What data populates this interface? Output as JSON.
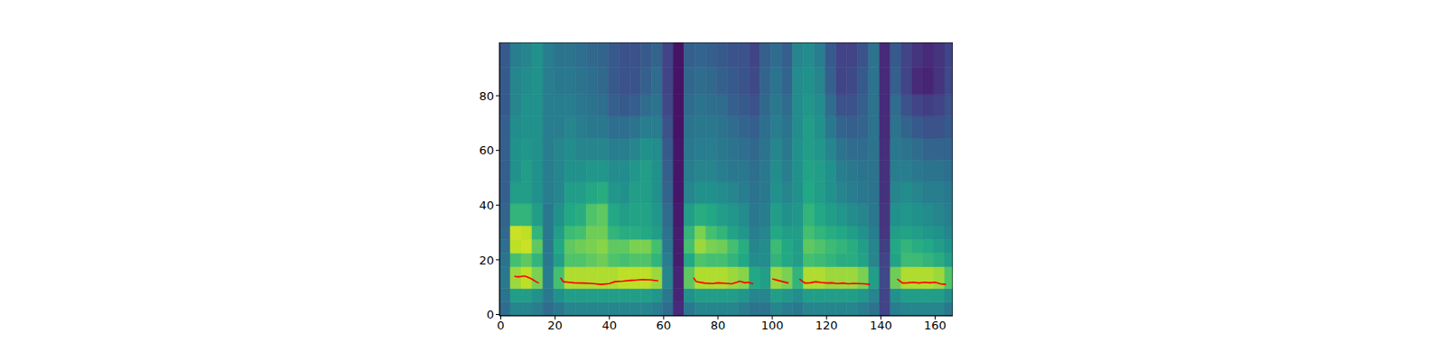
{
  "chart_data": {
    "type": "heatmap",
    "xlim": [
      -0.5,
      166.5
    ],
    "ylim": [
      -0.5,
      99.5
    ],
    "xticks": [
      0,
      20,
      40,
      60,
      80,
      100,
      120,
      140,
      160
    ],
    "yticks": [
      0,
      20,
      40,
      60,
      80
    ],
    "clim": [
      0,
      1
    ],
    "x_edges": [
      -0.5,
      3.5,
      7.5,
      11.5,
      15.5,
      19.5,
      23.5,
      27.5,
      31.5,
      35.5,
      39.5,
      43.5,
      47.5,
      51.5,
      55.5,
      59.5,
      63.5,
      67.5,
      71.5,
      75.5,
      79.5,
      83.5,
      87.5,
      91.5,
      95.5,
      99.5,
      103.5,
      107.5,
      111.5,
      115.5,
      119.5,
      123.5,
      127.5,
      131.5,
      135.5,
      139.5,
      143.5,
      147.5,
      151.5,
      155.5,
      159.5,
      163.5,
      166.5
    ],
    "y_edges": [
      -0.5,
      4.5,
      9.5,
      17.5,
      22.5,
      27.5,
      32.5,
      40.5,
      48.5,
      56.5,
      64.5,
      72.5,
      80.5,
      90.5,
      99.5
    ],
    "cells": [
      [
        0.35,
        0.38,
        0.4,
        0.38,
        0.36,
        0.34,
        0.32,
        0.3,
        0.3,
        0.3,
        0.3,
        0.28,
        0.28,
        0.28
      ],
      [
        0.45,
        0.55,
        0.85,
        0.7,
        0.9,
        0.92,
        0.65,
        0.55,
        0.5,
        0.5,
        0.48,
        0.45,
        0.45,
        0.42
      ],
      [
        0.45,
        0.55,
        0.9,
        0.75,
        0.92,
        0.9,
        0.65,
        0.55,
        0.55,
        0.52,
        0.5,
        0.5,
        0.48,
        0.45
      ],
      [
        0.42,
        0.5,
        0.8,
        0.65,
        0.75,
        0.65,
        0.55,
        0.5,
        0.5,
        0.5,
        0.5,
        0.5,
        0.5,
        0.5
      ],
      [
        0.35,
        0.4,
        0.42,
        0.4,
        0.4,
        0.4,
        0.4,
        0.42,
        0.42,
        0.42,
        0.42,
        0.42,
        0.42,
        0.42
      ],
      [
        0.4,
        0.5,
        0.7,
        0.55,
        0.6,
        0.55,
        0.5,
        0.45,
        0.45,
        0.45,
        0.42,
        0.42,
        0.4,
        0.38
      ],
      [
        0.45,
        0.55,
        0.88,
        0.72,
        0.75,
        0.68,
        0.6,
        0.55,
        0.5,
        0.48,
        0.45,
        0.42,
        0.4,
        0.38
      ],
      [
        0.45,
        0.55,
        0.88,
        0.72,
        0.78,
        0.7,
        0.62,
        0.55,
        0.5,
        0.45,
        0.42,
        0.4,
        0.38,
        0.36
      ],
      [
        0.45,
        0.55,
        0.88,
        0.75,
        0.8,
        0.78,
        0.72,
        0.6,
        0.52,
        0.45,
        0.4,
        0.38,
        0.36,
        0.34
      ],
      [
        0.45,
        0.55,
        0.88,
        0.78,
        0.82,
        0.78,
        0.75,
        0.62,
        0.52,
        0.45,
        0.4,
        0.36,
        0.34,
        0.32
      ],
      [
        0.45,
        0.55,
        0.88,
        0.72,
        0.75,
        0.65,
        0.6,
        0.52,
        0.48,
        0.42,
        0.36,
        0.3,
        0.28,
        0.28
      ],
      [
        0.45,
        0.55,
        0.9,
        0.7,
        0.75,
        0.62,
        0.55,
        0.5,
        0.48,
        0.42,
        0.36,
        0.28,
        0.25,
        0.25
      ],
      [
        0.45,
        0.55,
        0.9,
        0.72,
        0.8,
        0.62,
        0.58,
        0.55,
        0.52,
        0.45,
        0.38,
        0.3,
        0.26,
        0.25
      ],
      [
        0.45,
        0.55,
        0.9,
        0.72,
        0.8,
        0.6,
        0.58,
        0.55,
        0.55,
        0.5,
        0.42,
        0.35,
        0.3,
        0.28
      ],
      [
        0.42,
        0.52,
        0.85,
        0.65,
        0.7,
        0.55,
        0.52,
        0.5,
        0.5,
        0.48,
        0.42,
        0.38,
        0.35,
        0.32
      ],
      [
        0.35,
        0.4,
        0.45,
        0.42,
        0.4,
        0.38,
        0.35,
        0.32,
        0.3,
        0.28,
        0.25,
        0.22,
        0.2,
        0.2
      ],
      [
        0.12,
        0.1,
        0.1,
        0.08,
        0.08,
        0.08,
        0.07,
        0.06,
        0.06,
        0.06,
        0.05,
        0.05,
        0.05,
        0.05
      ],
      [
        0.4,
        0.5,
        0.75,
        0.6,
        0.7,
        0.65,
        0.55,
        0.45,
        0.42,
        0.4,
        0.38,
        0.35,
        0.33,
        0.3
      ],
      [
        0.45,
        0.55,
        0.88,
        0.72,
        0.85,
        0.8,
        0.62,
        0.5,
        0.45,
        0.42,
        0.4,
        0.38,
        0.35,
        0.32
      ],
      [
        0.45,
        0.55,
        0.88,
        0.7,
        0.8,
        0.7,
        0.6,
        0.5,
        0.45,
        0.42,
        0.4,
        0.36,
        0.34,
        0.3
      ],
      [
        0.45,
        0.55,
        0.88,
        0.7,
        0.78,
        0.65,
        0.55,
        0.48,
        0.42,
        0.4,
        0.38,
        0.35,
        0.3,
        0.28
      ],
      [
        0.45,
        0.55,
        0.85,
        0.65,
        0.7,
        0.58,
        0.52,
        0.45,
        0.4,
        0.38,
        0.35,
        0.3,
        0.28,
        0.26
      ],
      [
        0.42,
        0.52,
        0.82,
        0.6,
        0.62,
        0.52,
        0.48,
        0.42,
        0.4,
        0.36,
        0.32,
        0.28,
        0.26,
        0.25
      ],
      [
        0.38,
        0.45,
        0.6,
        0.48,
        0.45,
        0.42,
        0.4,
        0.38,
        0.36,
        0.34,
        0.3,
        0.25,
        0.22,
        0.2
      ],
      [
        0.38,
        0.45,
        0.55,
        0.48,
        0.48,
        0.45,
        0.42,
        0.4,
        0.4,
        0.38,
        0.36,
        0.34,
        0.32,
        0.3
      ],
      [
        0.45,
        0.55,
        0.85,
        0.65,
        0.68,
        0.6,
        0.55,
        0.5,
        0.48,
        0.45,
        0.42,
        0.4,
        0.38,
        0.35
      ],
      [
        0.42,
        0.52,
        0.8,
        0.6,
        0.6,
        0.55,
        0.5,
        0.45,
        0.42,
        0.4,
        0.38,
        0.35,
        0.32,
        0.3
      ],
      [
        0.4,
        0.48,
        0.65,
        0.55,
        0.55,
        0.55,
        0.52,
        0.5,
        0.5,
        0.5,
        0.48,
        0.48,
        0.48,
        0.45
      ],
      [
        0.45,
        0.55,
        0.88,
        0.7,
        0.75,
        0.7,
        0.65,
        0.6,
        0.58,
        0.55,
        0.55,
        0.52,
        0.5,
        0.48
      ],
      [
        0.45,
        0.55,
        0.88,
        0.68,
        0.72,
        0.65,
        0.6,
        0.55,
        0.55,
        0.52,
        0.5,
        0.48,
        0.45,
        0.42
      ],
      [
        0.45,
        0.55,
        0.85,
        0.65,
        0.68,
        0.62,
        0.55,
        0.5,
        0.5,
        0.45,
        0.4,
        0.35,
        0.3,
        0.28
      ],
      [
        0.45,
        0.55,
        0.85,
        0.62,
        0.65,
        0.6,
        0.52,
        0.45,
        0.42,
        0.38,
        0.32,
        0.25,
        0.2,
        0.2
      ],
      [
        0.45,
        0.55,
        0.85,
        0.62,
        0.62,
        0.55,
        0.48,
        0.42,
        0.4,
        0.35,
        0.3,
        0.25,
        0.22,
        0.2
      ],
      [
        0.42,
        0.52,
        0.8,
        0.58,
        0.55,
        0.5,
        0.45,
        0.4,
        0.38,
        0.35,
        0.32,
        0.3,
        0.28,
        0.26
      ],
      [
        0.38,
        0.45,
        0.55,
        0.45,
        0.45,
        0.42,
        0.4,
        0.38,
        0.38,
        0.38,
        0.38,
        0.38,
        0.38,
        0.38
      ],
      [
        0.2,
        0.2,
        0.22,
        0.2,
        0.18,
        0.16,
        0.15,
        0.14,
        0.14,
        0.13,
        0.12,
        0.12,
        0.12,
        0.12
      ],
      [
        0.42,
        0.5,
        0.78,
        0.58,
        0.6,
        0.55,
        0.5,
        0.45,
        0.42,
        0.4,
        0.38,
        0.35,
        0.3,
        0.28
      ],
      [
        0.45,
        0.55,
        0.88,
        0.68,
        0.65,
        0.58,
        0.52,
        0.48,
        0.42,
        0.38,
        0.32,
        0.25,
        0.2,
        0.2
      ],
      [
        0.45,
        0.55,
        0.88,
        0.68,
        0.62,
        0.55,
        0.5,
        0.45,
        0.4,
        0.35,
        0.28,
        0.2,
        0.12,
        0.15
      ],
      [
        0.45,
        0.55,
        0.88,
        0.65,
        0.6,
        0.52,
        0.48,
        0.42,
        0.38,
        0.32,
        0.25,
        0.18,
        0.1,
        0.12
      ],
      [
        0.45,
        0.55,
        0.85,
        0.62,
        0.55,
        0.5,
        0.45,
        0.42,
        0.38,
        0.32,
        0.25,
        0.2,
        0.15,
        0.15
      ],
      [
        0.4,
        0.48,
        0.72,
        0.55,
        0.5,
        0.45,
        0.42,
        0.4,
        0.36,
        0.32,
        0.28,
        0.25,
        0.22,
        0.2
      ]
    ],
    "series": [
      {
        "type": "line",
        "color": "red",
        "x": [
          5,
          6,
          7,
          8,
          9,
          10,
          11,
          12,
          13,
          14,
          18,
          22,
          23,
          25,
          27,
          30,
          33,
          35,
          37,
          40,
          42,
          45,
          48,
          50,
          52,
          55,
          58,
          64,
          71,
          72,
          75,
          78,
          80,
          83,
          85,
          87,
          88,
          90,
          91,
          93,
          96,
          100,
          102,
          104,
          106,
          108,
          110,
          112,
          114,
          116,
          118,
          120,
          122,
          124,
          126,
          128,
          130,
          132,
          134,
          136,
          140,
          146,
          148,
          150,
          152,
          154,
          156,
          158,
          160,
          162,
          164
        ],
        "values": [
          14,
          13.8,
          13.8,
          14,
          14,
          13.6,
          13.2,
          12.6,
          12,
          11.5,
          null,
          13.5,
          12,
          11.8,
          11.6,
          11.5,
          11.4,
          11.2,
          11,
          11.3,
          12,
          12.2,
          12.5,
          12.6,
          12.8,
          12.7,
          12.3,
          null,
          13.5,
          12,
          11.5,
          11.3,
          11.6,
          11.4,
          11.2,
          11.8,
          12.2,
          11.6,
          11.8,
          11.2,
          null,
          13,
          12.5,
          12,
          11.5,
          null,
          13,
          11.5,
          11.6,
          12,
          11.7,
          11.5,
          11.6,
          11.3,
          11.5,
          11.2,
          11.4,
          11.3,
          11.2,
          11,
          null,
          13,
          11.5,
          11.6,
          11.8,
          11.5,
          11.8,
          11.6,
          11.8,
          11.2,
          11
        ]
      }
    ]
  }
}
